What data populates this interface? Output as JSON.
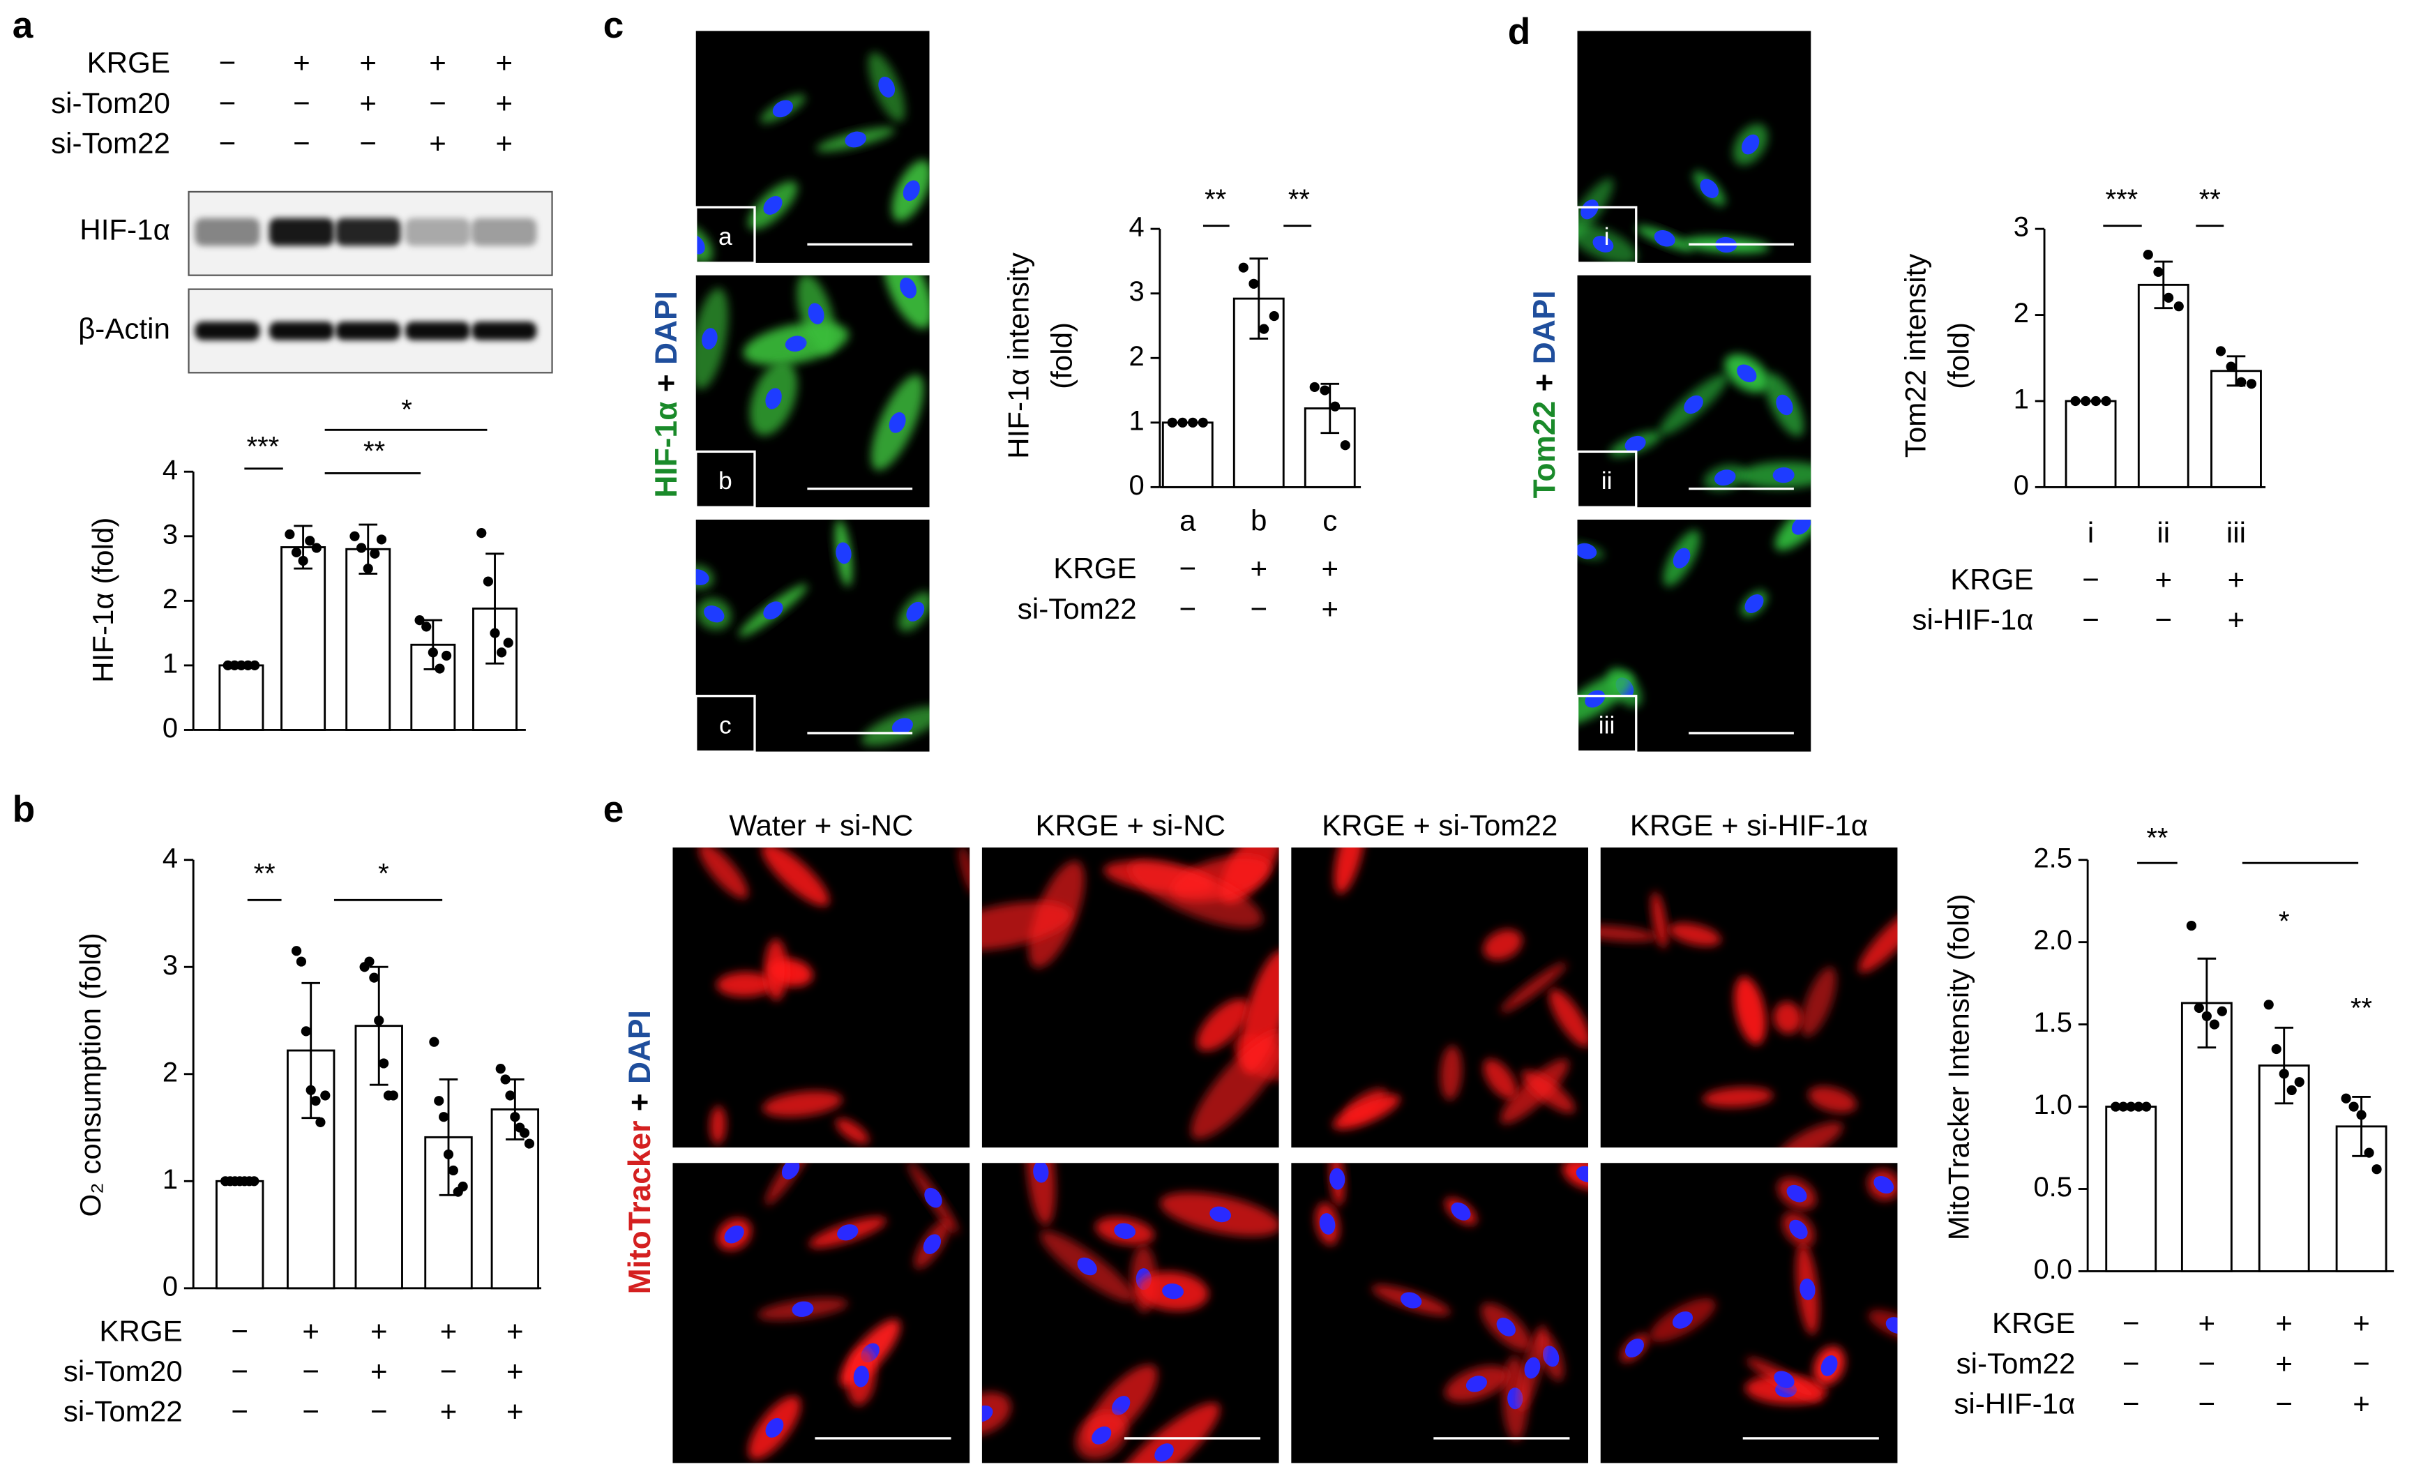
{
  "panels": [
    "a",
    "b",
    "c",
    "d",
    "e"
  ],
  "blot": {
    "bands": [
      "HIF-1α",
      "β-Actin"
    ]
  },
  "images": {
    "c": {
      "stain": {
        "marker": "HIF-1α",
        "joiner": "+",
        "nucleus": "DAPI"
      },
      "labels": [
        "a",
        "b",
        "c"
      ]
    },
    "d": {
      "stain": {
        "marker": "Tom22",
        "joiner": "+",
        "nucleus": "DAPI"
      },
      "labels": [
        "i",
        "ii",
        "iii"
      ]
    },
    "e": {
      "stain": {
        "marker": "MitoTracker",
        "joiner": "+",
        "nucleus": "DAPI"
      },
      "columns": [
        "Water + si-NC",
        "KRGE + si-NC",
        "KRGE + si-Tom22",
        "KRGE + si-HIF-1α"
      ]
    }
  },
  "chart_data": [
    {
      "type": "bar",
      "ylabel": "HIF-1α (fold)",
      "categories": [
        null,
        null,
        null,
        null,
        null
      ],
      "values": [
        1,
        2.83,
        2.8,
        1.32,
        1.88
      ],
      "errors": [
        0,
        0.33,
        0.38,
        0.38,
        0.85
      ],
      "points": [
        [
          1,
          1,
          1,
          1,
          1
        ],
        [
          3.03,
          2.75,
          2.62,
          2.93,
          2.82
        ],
        [
          3.0,
          2.82,
          2.5,
          2.73,
          2.95
        ],
        [
          1.7,
          1.6,
          1.2,
          0.95,
          1.15
        ],
        [
          3.05,
          2.3,
          1.5,
          1.2,
          1.35
        ]
      ],
      "color": "#ffffff",
      "ylim": [
        0,
        4
      ],
      "yticks": [
        0,
        1,
        2,
        3,
        4
      ],
      "conditions": [
        {
          "name": "KRGE",
          "signs": [
            "−",
            "+",
            "+",
            "+",
            "+"
          ]
        },
        {
          "name": "si-Tom20",
          "signs": [
            "−",
            "−",
            "+",
            "−",
            "+"
          ]
        },
        {
          "name": "si-Tom22",
          "signs": [
            "−",
            "−",
            "−",
            "+",
            "+"
          ]
        }
      ],
      "annotations": [
        "***",
        "**",
        "*"
      ]
    },
    {
      "type": "bar",
      "ylabel": "O₂ consumption (fold)",
      "categories": [
        null,
        null,
        null,
        null,
        null
      ],
      "values": [
        1,
        2.22,
        2.45,
        1.41,
        1.67
      ],
      "errors": [
        0,
        0.63,
        0.55,
        0.54,
        0.28
      ],
      "points": [
        [
          1,
          1,
          1,
          1,
          1,
          1,
          1
        ],
        [
          3.15,
          3.05,
          2.4,
          1.85,
          1.75,
          1.55,
          1.8
        ],
        [
          3.0,
          3.05,
          2.9,
          2.5,
          2.1,
          1.8,
          1.8
        ],
        [
          2.3,
          1.75,
          1.6,
          1.25,
          1.1,
          0.9,
          0.95
        ],
        [
          2.05,
          1.95,
          1.8,
          1.6,
          1.5,
          1.45,
          1.35
        ]
      ],
      "color": "#ffffff",
      "ylim": [
        0,
        4
      ],
      "yticks": [
        0,
        1,
        2,
        3,
        4
      ],
      "conditions": [
        {
          "name": "KRGE",
          "signs": [
            "−",
            "+",
            "+",
            "+",
            "+"
          ]
        },
        {
          "name": "si-Tom20",
          "signs": [
            "−",
            "−",
            "+",
            "−",
            "+"
          ]
        },
        {
          "name": "si-Tom22",
          "signs": [
            "−",
            "−",
            "−",
            "+",
            "+"
          ]
        }
      ],
      "annotations": [
        "**",
        "*"
      ]
    },
    {
      "type": "bar",
      "ylabel": [
        "HIF-1α intensity",
        "(fold)"
      ],
      "categories": [
        "a",
        "b",
        "c"
      ],
      "values": [
        1,
        2.92,
        1.22
      ],
      "errors": [
        0,
        0.62,
        0.38
      ],
      "points": [
        [
          1,
          1,
          1,
          1
        ],
        [
          3.4,
          3.15,
          2.45,
          2.65
        ],
        [
          1.55,
          1.5,
          1.25,
          0.65
        ]
      ],
      "color": "#ffffff",
      "ylim": [
        0,
        4
      ],
      "yticks": [
        0,
        1,
        2,
        3,
        4
      ],
      "conditions": [
        {
          "name": "KRGE",
          "signs": [
            "−",
            "+",
            "+"
          ]
        },
        {
          "name": "si-Tom22",
          "signs": [
            "−",
            "−",
            "+"
          ]
        }
      ],
      "annotations": [
        "**",
        "**"
      ]
    },
    {
      "type": "bar",
      "ylabel": [
        "Tom22 intensity",
        "(fold)"
      ],
      "categories": [
        "i",
        "ii",
        "iii"
      ],
      "values": [
        1,
        2.35,
        1.35
      ],
      "errors": [
        0,
        0.27,
        0.17
      ],
      "points": [
        [
          1,
          1,
          1,
          1
        ],
        [
          2.7,
          2.5,
          2.2,
          2.1
        ],
        [
          1.58,
          1.4,
          1.22,
          1.2
        ]
      ],
      "color": "#ffffff",
      "ylim": [
        0,
        3
      ],
      "yticks": [
        0,
        1,
        2,
        3
      ],
      "conditions": [
        {
          "name": "KRGE",
          "signs": [
            "−",
            "+",
            "+"
          ]
        },
        {
          "name": "si-HIF-1α",
          "signs": [
            "−",
            "−",
            "+"
          ]
        }
      ],
      "annotations": [
        "***",
        "**"
      ]
    },
    {
      "type": "bar",
      "ylabel": "MitoTracker Intensity (fold)",
      "categories": [
        null,
        null,
        null,
        null
      ],
      "values": [
        1,
        1.63,
        1.25,
        0.88
      ],
      "errors": [
        0,
        0.27,
        0.23,
        0.18
      ],
      "points": [
        [
          1,
          1,
          1,
          1,
          1
        ],
        [
          2.1,
          1.6,
          1.55,
          1.5,
          1.58
        ],
        [
          1.62,
          1.35,
          1.2,
          1.1,
          1.15
        ],
        [
          1.05,
          1.0,
          0.95,
          0.72,
          0.62
        ]
      ],
      "color": "#ffffff",
      "ylim": [
        0,
        2.5
      ],
      "yticks": [
        {
          "value": 0,
          "label": "0.0"
        },
        {
          "value": 0.5,
          "label": "0.5"
        },
        {
          "value": 1,
          "label": "1.0"
        },
        {
          "value": 1.5,
          "label": "1.5"
        },
        {
          "value": 2,
          "label": "2.0"
        },
        {
          "value": 2.5,
          "label": "2.5"
        }
      ],
      "conditions": [
        {
          "name": "KRGE",
          "signs": [
            "−",
            "+",
            "+",
            "+"
          ]
        },
        {
          "name": "si-Tom22",
          "signs": [
            "−",
            "−",
            "+",
            "−"
          ]
        },
        {
          "name": "si-HIF-1α",
          "signs": [
            "−",
            "−",
            "−",
            "+"
          ]
        }
      ],
      "annotations": [
        "**",
        "*",
        "**"
      ]
    }
  ]
}
